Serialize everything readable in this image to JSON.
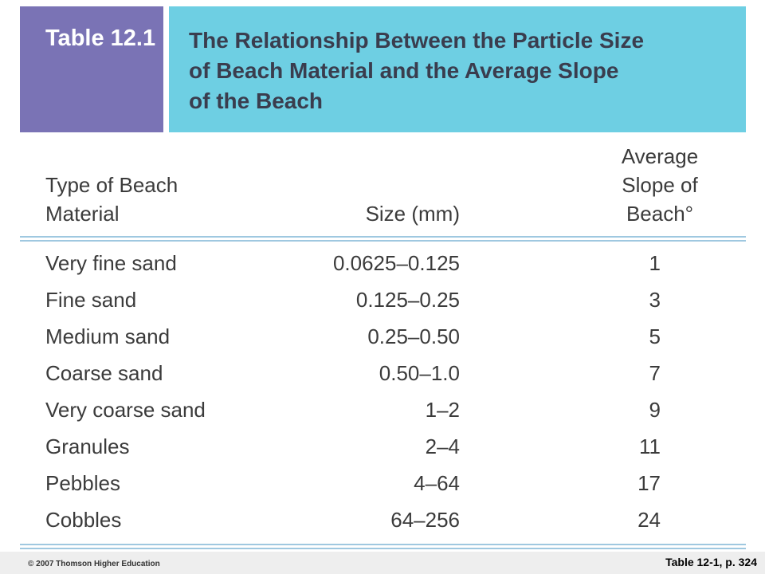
{
  "header": {
    "label": "Table 12.1",
    "title": [
      "The Relationship Between the Particle Size",
      "of Beach Material and the Average Slope",
      "of the Beach"
    ]
  },
  "table": {
    "columns": [
      [
        "Type of Beach",
        "Material"
      ],
      [
        "Size (mm)"
      ],
      [
        "Average",
        "Slope of",
        "Beach°"
      ]
    ],
    "rows": [
      [
        "Very fine sand",
        "0.0625–0.125",
        "1"
      ],
      [
        "Fine sand",
        "0.125–0.25",
        "3"
      ],
      [
        "Medium sand",
        "0.25–0.50",
        "5"
      ],
      [
        "Coarse sand",
        "0.50–1.0",
        "7"
      ],
      [
        "Very coarse sand",
        "1–2",
        "9"
      ],
      [
        "Granules",
        "2–4",
        "11"
      ],
      [
        "Pebbles",
        "4–64",
        "17"
      ],
      [
        "Cobbles",
        "64–256",
        "24"
      ]
    ]
  },
  "footer": {
    "copyright": "© 2007 Thomson Higher Education",
    "reference": "Table 12-1, p. 324"
  }
}
